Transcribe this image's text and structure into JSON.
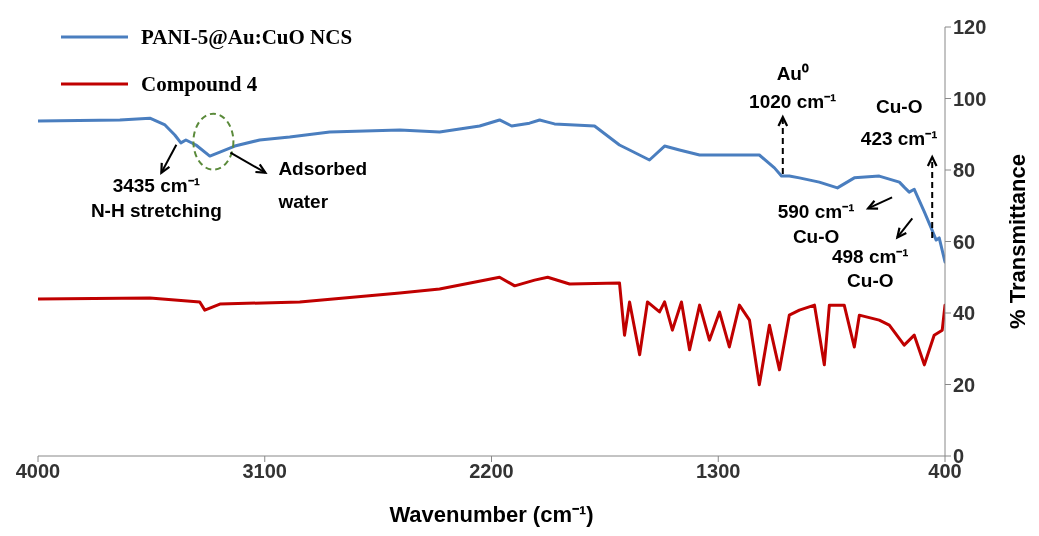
{
  "chart_data": {
    "type": "line",
    "xlabel": "Wavenumber (cm⁻¹)",
    "ylabel": "% Transmittance",
    "xlim": [
      4000,
      400
    ],
    "xticks": [
      4000,
      3100,
      2200,
      1300,
      400
    ],
    "ylim": [
      0,
      120
    ],
    "yticks": [
      0,
      20,
      40,
      60,
      80,
      100,
      120
    ],
    "grid": false,
    "legend": "top left",
    "series": [
      {
        "name": "PANI-5@Au:CuO NCS",
        "color": "#4a7ebf",
        "x": [
          4000,
          3675,
          3556,
          3496,
          3457,
          3433,
          3413,
          3373,
          3318,
          3278,
          3219,
          3120,
          3001,
          2842,
          2564,
          2406,
          2247,
          2168,
          2120,
          2049,
          2009,
          1977,
          1950,
          1791,
          1692,
          1652,
          1573,
          1513,
          1454,
          1374,
          1137,
          1077,
          1049,
          1018,
          978,
          899,
          827,
          760,
          661,
          581,
          562,
          542,
          522,
          482,
          455,
          435,
          423,
          400
        ],
        "values": [
          93.7,
          94.0,
          94.5,
          92.6,
          89.8,
          87.6,
          88.4,
          87.0,
          83.9,
          85.0,
          86.7,
          88.4,
          89.2,
          90.6,
          91.2,
          90.6,
          92.3,
          94.0,
          92.3,
          93.1,
          94.0,
          93.4,
          92.9,
          92.3,
          87.0,
          85.6,
          82.8,
          86.7,
          85.6,
          84.2,
          84.2,
          80.6,
          78.3,
          78.3,
          77.8,
          76.6,
          75.0,
          77.8,
          78.3,
          76.6,
          75.2,
          73.8,
          74.6,
          68.3,
          63.8,
          60.4,
          61.0,
          54.3
        ]
      },
      {
        "name": "Compound 4",
        "color": "#c00000",
        "x": [
          4000,
          3556,
          3358,
          3338,
          3278,
          2961,
          2564,
          2406,
          2168,
          2108,
          2029,
          1977,
          1890,
          1692,
          1672,
          1652,
          1612,
          1581,
          1533,
          1513,
          1482,
          1446,
          1414,
          1374,
          1335,
          1295,
          1256,
          1216,
          1176,
          1137,
          1097,
          1057,
          1018,
          978,
          918,
          879,
          859,
          800,
          760,
          740,
          661,
          621,
          562,
          522,
          482,
          443,
          411,
          400
        ],
        "values": [
          43.9,
          44.2,
          43.1,
          40.8,
          42.5,
          43.1,
          45.6,
          46.7,
          50.0,
          47.6,
          49.2,
          50.0,
          48.1,
          48.4,
          33.8,
          43.1,
          28.3,
          43.1,
          40.3,
          43.1,
          35.2,
          43.1,
          29.7,
          42.2,
          32.4,
          40.3,
          30.5,
          42.2,
          38.0,
          19.9,
          36.6,
          24.1,
          39.4,
          40.8,
          42.2,
          25.5,
          42.2,
          42.2,
          30.5,
          39.4,
          38.0,
          36.6,
          31.0,
          33.8,
          25.5,
          33.8,
          35.2,
          42.2
        ]
      }
    ],
    "annotations": [
      {
        "text": "3435 cm⁻¹\nN-H stretching",
        "x": 3435,
        "y": 87.6
      },
      "Adsorbed\nwater",
      {
        "text": "Au⁰\n1020 cm⁻¹",
        "x": 1020,
        "y": 78.3
      },
      {
        "text": "Cu-O\n423 cm⁻¹",
        "x": 423,
        "y": 61
      },
      "590 cm⁻¹\nCu-O",
      {
        "text": "498 cm⁻¹\nCu-O",
        "x": 498,
        "y": 67
      }
    ]
  }
}
